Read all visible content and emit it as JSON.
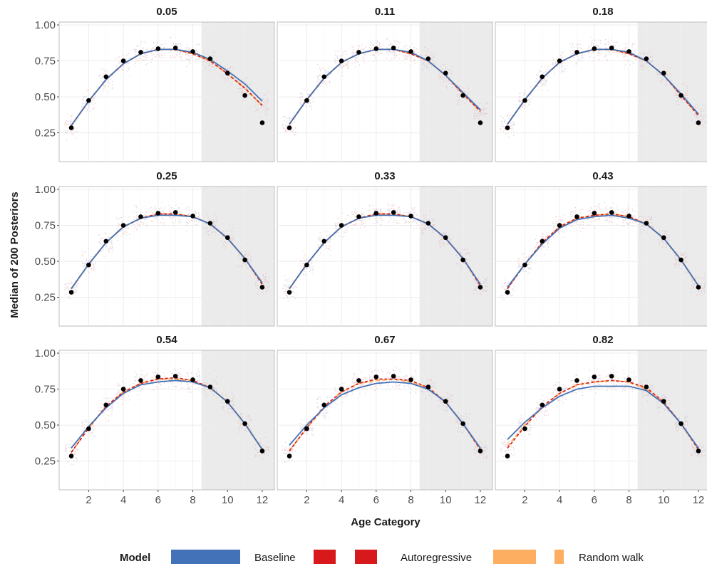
{
  "chart_data": {
    "type": "line",
    "facet_labels": [
      "0.05",
      "0.11",
      "0.18",
      "0.25",
      "0.33",
      "0.43",
      "0.54",
      "0.67",
      "0.82"
    ],
    "xlabel": "Age Category",
    "ylabel": "Median of 200 Posteriors",
    "x": [
      1,
      2,
      3,
      4,
      5,
      6,
      7,
      8,
      9,
      10,
      11,
      12
    ],
    "xticks": [
      2,
      4,
      6,
      8,
      10,
      12
    ],
    "yticks": [
      0.25,
      0.5,
      0.75,
      1.0
    ],
    "ytick_labels": [
      "0.25",
      "0.50",
      "0.75",
      "1.00"
    ],
    "xlim": [
      0.3,
      12.7
    ],
    "ylim": [
      0.05,
      1.02
    ],
    "shaded_region_x": [
      8.5,
      12.7
    ],
    "observed": [
      0.285,
      0.475,
      0.64,
      0.75,
      0.81,
      0.835,
      0.84,
      0.815,
      0.765,
      0.665,
      0.51,
      0.32
    ],
    "legend": {
      "title": "Model",
      "entries": [
        {
          "name": "Baseline",
          "color": "#4472b8",
          "style": "solid"
        },
        {
          "name": "Autoregressive",
          "color": "#d7191c",
          "style": "dashed"
        },
        {
          "name": "Random walk",
          "color": "#fdae61",
          "style": "dashed"
        }
      ]
    },
    "panels": [
      {
        "label": "0.05",
        "baseline": [
          0.3,
          0.47,
          0.62,
          0.73,
          0.8,
          0.83,
          0.83,
          0.81,
          0.76,
          0.68,
          0.59,
          0.47
        ],
        "autoregressive": [
          0.3,
          0.47,
          0.62,
          0.73,
          0.8,
          0.83,
          0.83,
          0.8,
          0.75,
          0.66,
          0.56,
          0.44
        ],
        "random_walk": [
          0.3,
          0.47,
          0.62,
          0.73,
          0.8,
          0.83,
          0.83,
          0.8,
          0.75,
          0.66,
          0.56,
          0.44
        ]
      },
      {
        "label": "0.11",
        "baseline": [
          0.31,
          0.48,
          0.63,
          0.74,
          0.8,
          0.83,
          0.83,
          0.81,
          0.75,
          0.65,
          0.53,
          0.41
        ],
        "autoregressive": [
          0.31,
          0.48,
          0.63,
          0.74,
          0.8,
          0.83,
          0.83,
          0.8,
          0.75,
          0.65,
          0.52,
          0.4
        ],
        "random_walk": [
          0.31,
          0.48,
          0.63,
          0.74,
          0.8,
          0.83,
          0.83,
          0.8,
          0.75,
          0.65,
          0.52,
          0.4
        ]
      },
      {
        "label": "0.18",
        "baseline": [
          0.31,
          0.48,
          0.63,
          0.74,
          0.8,
          0.83,
          0.83,
          0.81,
          0.75,
          0.65,
          0.52,
          0.38
        ],
        "autoregressive": [
          0.31,
          0.48,
          0.63,
          0.74,
          0.8,
          0.83,
          0.83,
          0.8,
          0.75,
          0.65,
          0.51,
          0.37
        ],
        "random_walk": [
          0.31,
          0.48,
          0.63,
          0.74,
          0.8,
          0.83,
          0.83,
          0.8,
          0.75,
          0.65,
          0.51,
          0.37
        ]
      },
      {
        "label": "0.25",
        "baseline": [
          0.31,
          0.48,
          0.63,
          0.74,
          0.8,
          0.82,
          0.82,
          0.81,
          0.76,
          0.66,
          0.52,
          0.35
        ],
        "autoregressive": [
          0.31,
          0.48,
          0.63,
          0.74,
          0.8,
          0.83,
          0.83,
          0.81,
          0.76,
          0.66,
          0.52,
          0.34
        ],
        "random_walk": [
          0.31,
          0.48,
          0.63,
          0.74,
          0.8,
          0.83,
          0.83,
          0.81,
          0.76,
          0.66,
          0.52,
          0.34
        ]
      },
      {
        "label": "0.33",
        "baseline": [
          0.31,
          0.48,
          0.63,
          0.74,
          0.8,
          0.82,
          0.82,
          0.81,
          0.76,
          0.66,
          0.52,
          0.34
        ],
        "autoregressive": [
          0.31,
          0.48,
          0.63,
          0.74,
          0.8,
          0.83,
          0.83,
          0.81,
          0.76,
          0.66,
          0.52,
          0.33
        ],
        "random_walk": [
          0.31,
          0.48,
          0.63,
          0.74,
          0.8,
          0.83,
          0.83,
          0.81,
          0.76,
          0.66,
          0.52,
          0.33
        ]
      },
      {
        "label": "0.43",
        "baseline": [
          0.32,
          0.48,
          0.62,
          0.73,
          0.79,
          0.81,
          0.82,
          0.8,
          0.76,
          0.66,
          0.51,
          0.33
        ],
        "autoregressive": [
          0.31,
          0.48,
          0.63,
          0.74,
          0.8,
          0.82,
          0.83,
          0.81,
          0.76,
          0.66,
          0.51,
          0.33
        ],
        "random_walk": [
          0.31,
          0.48,
          0.63,
          0.74,
          0.8,
          0.82,
          0.83,
          0.81,
          0.76,
          0.66,
          0.51,
          0.33
        ]
      },
      {
        "label": "0.54",
        "baseline": [
          0.34,
          0.49,
          0.62,
          0.72,
          0.78,
          0.8,
          0.81,
          0.8,
          0.76,
          0.66,
          0.51,
          0.33
        ],
        "autoregressive": [
          0.31,
          0.48,
          0.63,
          0.73,
          0.79,
          0.82,
          0.83,
          0.81,
          0.76,
          0.66,
          0.51,
          0.33
        ],
        "random_walk": [
          0.31,
          0.48,
          0.63,
          0.73,
          0.79,
          0.82,
          0.82,
          0.81,
          0.76,
          0.66,
          0.51,
          0.33
        ]
      },
      {
        "label": "0.67",
        "baseline": [
          0.36,
          0.5,
          0.62,
          0.71,
          0.76,
          0.79,
          0.8,
          0.79,
          0.75,
          0.66,
          0.51,
          0.34
        ],
        "autoregressive": [
          0.32,
          0.48,
          0.63,
          0.73,
          0.79,
          0.82,
          0.82,
          0.81,
          0.76,
          0.66,
          0.51,
          0.33
        ],
        "random_walk": [
          0.32,
          0.48,
          0.62,
          0.73,
          0.79,
          0.81,
          0.82,
          0.8,
          0.76,
          0.66,
          0.51,
          0.33
        ]
      },
      {
        "label": "0.82",
        "baseline": [
          0.4,
          0.52,
          0.62,
          0.7,
          0.75,
          0.77,
          0.77,
          0.77,
          0.74,
          0.65,
          0.51,
          0.34
        ],
        "autoregressive": [
          0.34,
          0.49,
          0.63,
          0.72,
          0.78,
          0.8,
          0.81,
          0.8,
          0.76,
          0.66,
          0.51,
          0.33
        ],
        "random_walk": [
          0.35,
          0.5,
          0.62,
          0.72,
          0.78,
          0.8,
          0.81,
          0.8,
          0.75,
          0.66,
          0.51,
          0.33
        ]
      }
    ]
  }
}
